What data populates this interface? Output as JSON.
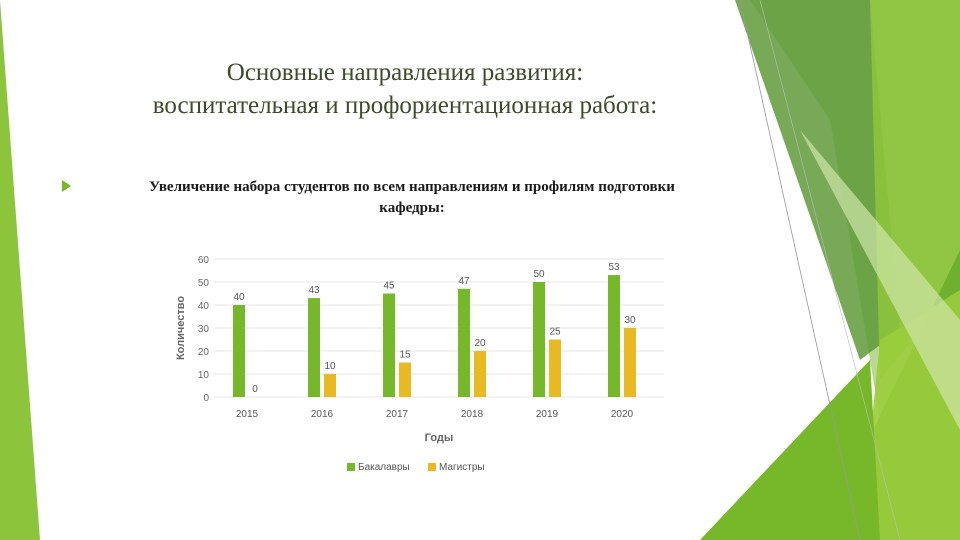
{
  "title": {
    "line1": "Основные направления развития:",
    "line2": "воспитательная и профориентационная работа:"
  },
  "bullet": {
    "line1": "Увеличение набора студентов по всем направлениям и профилям подготовки",
    "line2": "кафедры:"
  },
  "colors": {
    "accent_green": "#76b82a",
    "bachelors": "#76b82a",
    "masters": "#e8b923"
  },
  "chart_data": {
    "type": "bar",
    "categories": [
      "2015",
      "2016",
      "2017",
      "2018",
      "2019",
      "2020"
    ],
    "series": [
      {
        "name": "Бакалавры",
        "values": [
          40,
          43,
          45,
          47,
          50,
          53
        ],
        "color": "#76b82a"
      },
      {
        "name": "Магистры",
        "values": [
          0,
          10,
          15,
          20,
          25,
          30
        ],
        "color": "#e8b923"
      }
    ],
    "xlabel": "Годы",
    "ylabel": "Количество",
    "ylim": [
      0,
      60
    ],
    "yticks": [
      0,
      10,
      20,
      30,
      40,
      50,
      60
    ],
    "grid": true,
    "legend": "bottom",
    "data_labels": true
  }
}
